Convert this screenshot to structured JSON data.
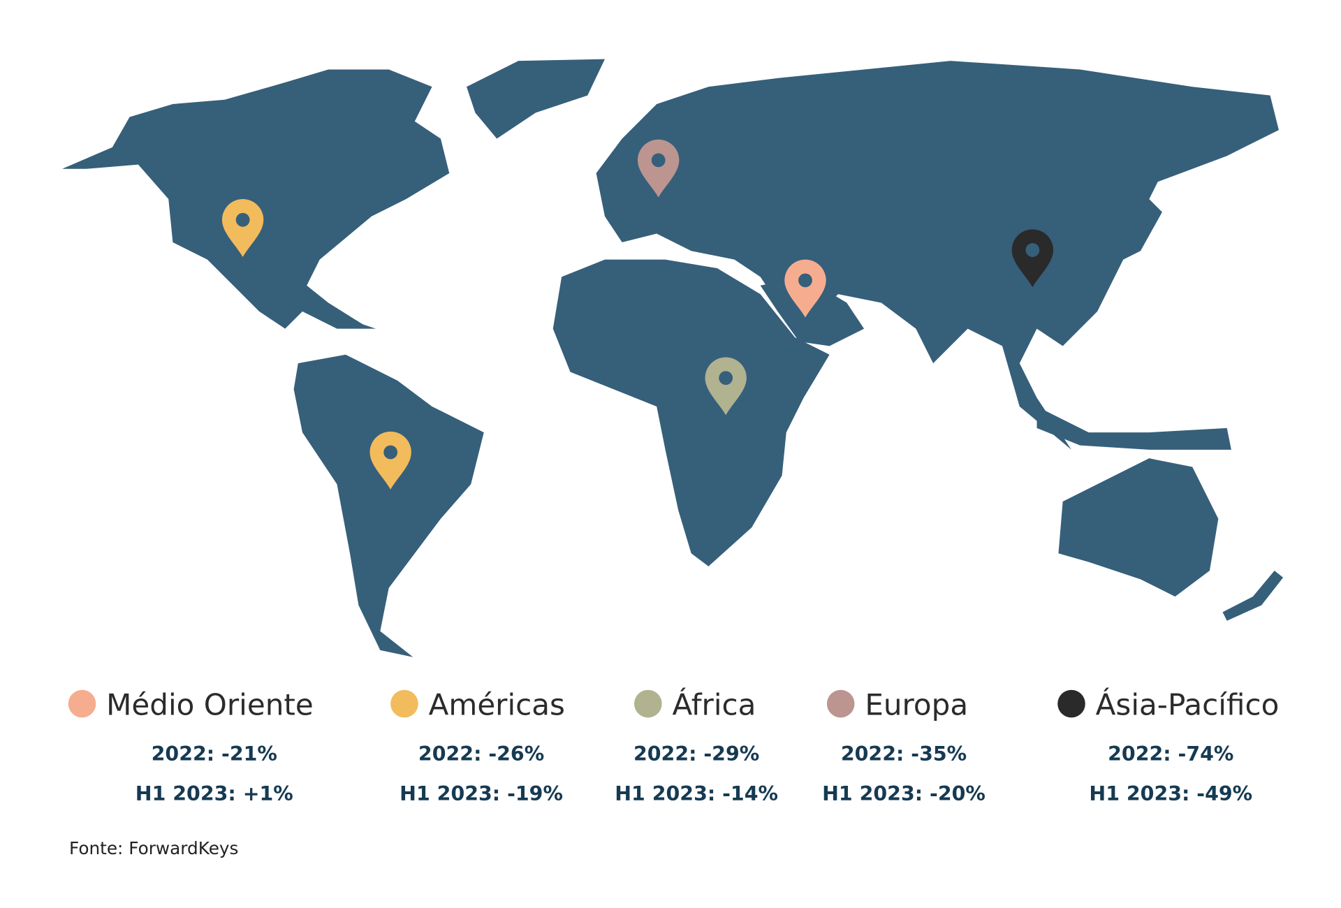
{
  "regions": [
    {
      "name": "Médio Oriente",
      "color": "#f6ad8f",
      "line_2022": "2022: -21%",
      "line_h1_2023": "H1 2023: +1%"
    },
    {
      "name": "Américas",
      "color": "#f2bb5c",
      "line_2022": "2022: -26%",
      "line_h1_2023": "H1 2023: -19%"
    },
    {
      "name": "África",
      "color": "#b0b290",
      "line_2022": "2022: -29%",
      "line_h1_2023": "H1 2023: -14%"
    },
    {
      "name": "Europa",
      "color": "#bc9590",
      "line_2022": "2022: -35%",
      "line_h1_2023": "H1 2023: -20%"
    },
    {
      "name": "Ásia-Pacífico",
      "color": "#2a2a2a",
      "line_2022": "2022: -74%",
      "line_h1_2023": "H1 2023: -49%"
    }
  ],
  "source": "Fonte: ForwardKeys"
}
